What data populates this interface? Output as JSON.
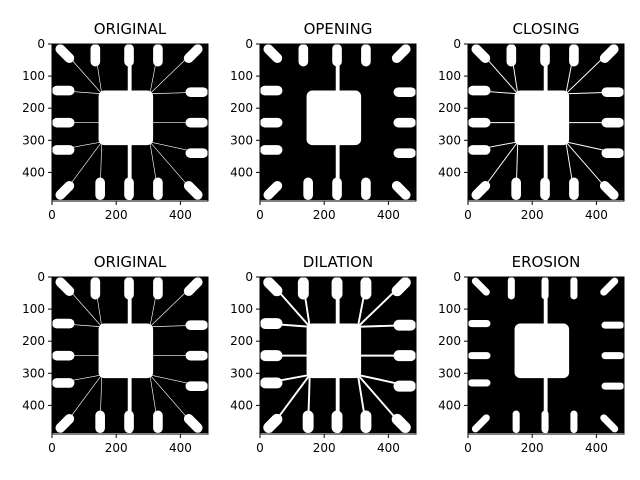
{
  "figure": {
    "background": "#ffffff",
    "image_colors": {
      "background": "#000000",
      "foreground": "#ffffff"
    },
    "panels": [
      {
        "title": "ORIGINAL",
        "variant": "original",
        "row": 0,
        "col": 0
      },
      {
        "title": "OPENING",
        "variant": "opening",
        "row": 0,
        "col": 1
      },
      {
        "title": "CLOSING",
        "variant": "closing",
        "row": 0,
        "col": 2
      },
      {
        "title": "ORIGINAL",
        "variant": "original",
        "row": 1,
        "col": 0
      },
      {
        "title": "DILATION",
        "variant": "dilation",
        "row": 1,
        "col": 1
      },
      {
        "title": "EROSION",
        "variant": "erosion",
        "row": 1,
        "col": 2
      }
    ],
    "x_ticks": [
      "0",
      "200",
      "400"
    ],
    "y_ticks": [
      "0",
      "100",
      "200",
      "300",
      "400"
    ],
    "image_extent": [
      0,
      486,
      486,
      0
    ]
  }
}
